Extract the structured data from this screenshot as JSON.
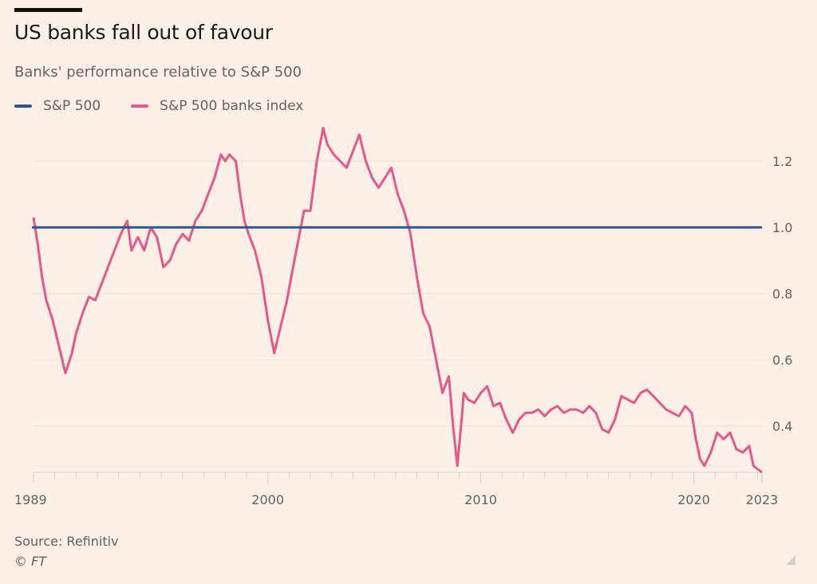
{
  "header": {
    "title": "US banks fall out of favour",
    "subtitle": "Banks' performance relative to S&P 500"
  },
  "legend": [
    {
      "label": "S&P 500",
      "color": "#2b5590"
    },
    {
      "label": "S&P 500 banks index",
      "color": "#e8578a"
    }
  ],
  "footer": {
    "source": "Source: Refinitiv",
    "credit": "© FT"
  },
  "chart_data": {
    "type": "line",
    "title": "US banks fall out of favour",
    "subtitle": "Banks' performance relative to S&P 500",
    "xlabel": "",
    "ylabel": "",
    "xlim": [
      1989,
      2023.2
    ],
    "ylim": [
      0.26,
      1.33
    ],
    "grid": true,
    "legend_position": "top-left",
    "x_tick_labels": [
      "1989",
      "2000",
      "2010",
      "2020",
      "2023"
    ],
    "x_ticks": [
      1989,
      2000,
      2010,
      2020,
      2023.2
    ],
    "y_tick_labels": [
      "0.4",
      "0.6",
      "0.8",
      "1.0",
      "1.2"
    ],
    "y_ticks": [
      0.4,
      0.6,
      0.8,
      1.0,
      1.2
    ],
    "series": [
      {
        "name": "S&P 500",
        "color": "#2b5590",
        "x": [
          1989,
          2023.2
        ],
        "values": [
          1.0,
          1.0
        ]
      },
      {
        "name": "S&P 500 banks index",
        "color": "#e8578a",
        "x": [
          1989.0,
          1989.2,
          1989.4,
          1989.6,
          1989.9,
          1990.2,
          1990.5,
          1990.8,
          1991.0,
          1991.3,
          1991.6,
          1991.9,
          1992.2,
          1992.5,
          1992.8,
          1993.1,
          1993.4,
          1993.6,
          1993.9,
          1994.2,
          1994.5,
          1994.8,
          1995.1,
          1995.4,
          1995.7,
          1996.0,
          1996.3,
          1996.6,
          1996.9,
          1997.2,
          1997.5,
          1997.8,
          1998.0,
          1998.2,
          1998.5,
          1998.7,
          1998.9,
          1999.1,
          1999.4,
          1999.7,
          2000.0,
          2000.3,
          2000.6,
          2000.9,
          2001.1,
          2001.4,
          2001.7,
          2002.0,
          2002.3,
          2002.6,
          2002.8,
          2003.1,
          2003.4,
          2003.7,
          2004.0,
          2004.3,
          2004.6,
          2004.9,
          2005.2,
          2005.5,
          2005.8,
          2006.1,
          2006.4,
          2006.7,
          2007.0,
          2007.3,
          2007.6,
          2007.9,
          2008.2,
          2008.5,
          2008.7,
          2008.9,
          2009.1,
          2009.2,
          2009.4,
          2009.7,
          2010.0,
          2010.3,
          2010.6,
          2010.9,
          2011.2,
          2011.5,
          2011.8,
          2012.1,
          2012.4,
          2012.7,
          2013.0,
          2013.3,
          2013.6,
          2013.9,
          2014.2,
          2014.5,
          2014.8,
          2015.1,
          2015.4,
          2015.7,
          2016.0,
          2016.3,
          2016.6,
          2016.9,
          2017.2,
          2017.5,
          2017.8,
          2018.1,
          2018.4,
          2018.7,
          2019.0,
          2019.3,
          2019.6,
          2019.9,
          2020.1,
          2020.3,
          2020.5,
          2020.8,
          2021.1,
          2021.4,
          2021.7,
          2022.0,
          2022.3,
          2022.6,
          2022.8,
          2023.0,
          2023.2
        ],
        "values": [
          1.03,
          0.95,
          0.85,
          0.78,
          0.72,
          0.64,
          0.56,
          0.62,
          0.68,
          0.74,
          0.79,
          0.78,
          0.83,
          0.88,
          0.93,
          0.98,
          1.02,
          0.93,
          0.97,
          0.93,
          1.0,
          0.97,
          0.88,
          0.9,
          0.95,
          0.98,
          0.96,
          1.02,
          1.05,
          1.1,
          1.15,
          1.22,
          1.2,
          1.22,
          1.2,
          1.1,
          1.02,
          0.98,
          0.93,
          0.85,
          0.72,
          0.62,
          0.7,
          0.78,
          0.85,
          0.95,
          1.05,
          1.05,
          1.2,
          1.3,
          1.25,
          1.22,
          1.2,
          1.18,
          1.23,
          1.28,
          1.2,
          1.15,
          1.12,
          1.15,
          1.18,
          1.1,
          1.05,
          0.98,
          0.85,
          0.74,
          0.7,
          0.6,
          0.5,
          0.55,
          0.4,
          0.28,
          0.42,
          0.5,
          0.48,
          0.47,
          0.5,
          0.52,
          0.46,
          0.47,
          0.42,
          0.38,
          0.42,
          0.44,
          0.44,
          0.45,
          0.43,
          0.45,
          0.46,
          0.44,
          0.45,
          0.45,
          0.44,
          0.46,
          0.44,
          0.39,
          0.38,
          0.42,
          0.49,
          0.48,
          0.47,
          0.5,
          0.51,
          0.49,
          0.47,
          0.45,
          0.44,
          0.43,
          0.46,
          0.44,
          0.36,
          0.3,
          0.28,
          0.32,
          0.38,
          0.36,
          0.38,
          0.33,
          0.32,
          0.34,
          0.28,
          0.27,
          0.26
        ]
      }
    ]
  }
}
